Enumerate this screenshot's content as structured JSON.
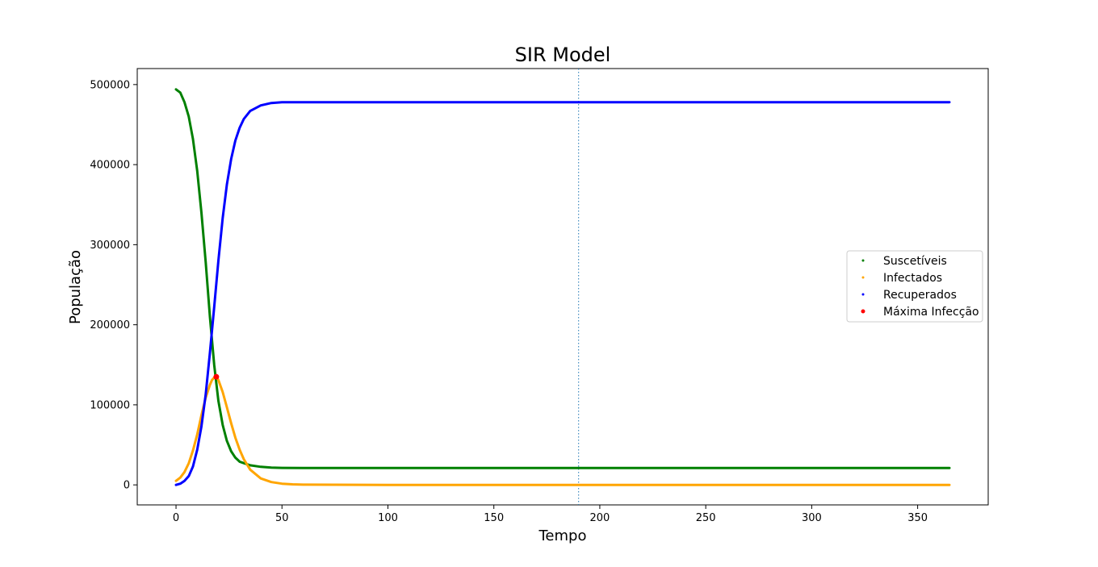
{
  "chart_data": {
    "type": "scatter",
    "title": "SIR Model",
    "xlabel": "Tempo",
    "ylabel": "População",
    "xlim": [
      -18.3,
      383.3
    ],
    "ylim": [
      -25000,
      520000
    ],
    "xticks": [
      0,
      50,
      100,
      150,
      200,
      250,
      300,
      350
    ],
    "yticks": [
      0,
      100000,
      200000,
      300000,
      400000,
      500000
    ],
    "grid": false,
    "legend_position": "center-right",
    "vline": {
      "x": 190,
      "style": "dotted",
      "color": "#1f77b4"
    },
    "series": [
      {
        "name": "Suscetíveis",
        "color": "#008000",
        "x": [
          0,
          2,
          4,
          6,
          8,
          10,
          12,
          14,
          16,
          18,
          20,
          22,
          24,
          26,
          28,
          30,
          35,
          40,
          45,
          50,
          60,
          100,
          150,
          200,
          250,
          300,
          365
        ],
        "y": [
          494000,
          490000,
          478000,
          460000,
          432000,
          392000,
          340000,
          278000,
          210000,
          150000,
          105000,
          75000,
          55000,
          42000,
          34000,
          29000,
          24500,
          22500,
          21500,
          21200,
          21000,
          21000,
          21000,
          21000,
          21000,
          21000,
          21000
        ]
      },
      {
        "name": "Infectados",
        "color": "#ffa500",
        "x": [
          0,
          2,
          4,
          6,
          8,
          10,
          12,
          14,
          16,
          17,
          18,
          19,
          20,
          22,
          24,
          26,
          28,
          30,
          32,
          35,
          40,
          45,
          50,
          55,
          60,
          100,
          150,
          200,
          250,
          300,
          365
        ],
        "y": [
          5000,
          9000,
          16000,
          27000,
          43000,
          63000,
          87000,
          109000,
          125000,
          131000,
          134000,
          135000,
          131000,
          116000,
          97000,
          77000,
          59000,
          44000,
          32000,
          19000,
          8000,
          3500,
          1500,
          700,
          300,
          0,
          0,
          0,
          0,
          0,
          0
        ]
      },
      {
        "name": "Recuperados",
        "color": "#0000ff",
        "x": [
          0,
          2,
          4,
          6,
          8,
          10,
          12,
          14,
          16,
          18,
          20,
          22,
          24,
          26,
          28,
          30,
          32,
          35,
          40,
          45,
          50,
          55,
          60,
          100,
          150,
          200,
          250,
          300,
          365
        ],
        "y": [
          0,
          1500,
          5000,
          11000,
          23000,
          44000,
          73000,
          113000,
          165000,
          222000,
          280000,
          333000,
          375000,
          407000,
          430000,
          446000,
          457000,
          467000,
          474000,
          477000,
          478000,
          478000,
          478000,
          478000,
          478000,
          478000,
          478000,
          478000,
          478000
        ]
      },
      {
        "name": "Máxima Infecção",
        "color": "#ff0000",
        "x": [
          19
        ],
        "y": [
          135000
        ]
      }
    ]
  }
}
